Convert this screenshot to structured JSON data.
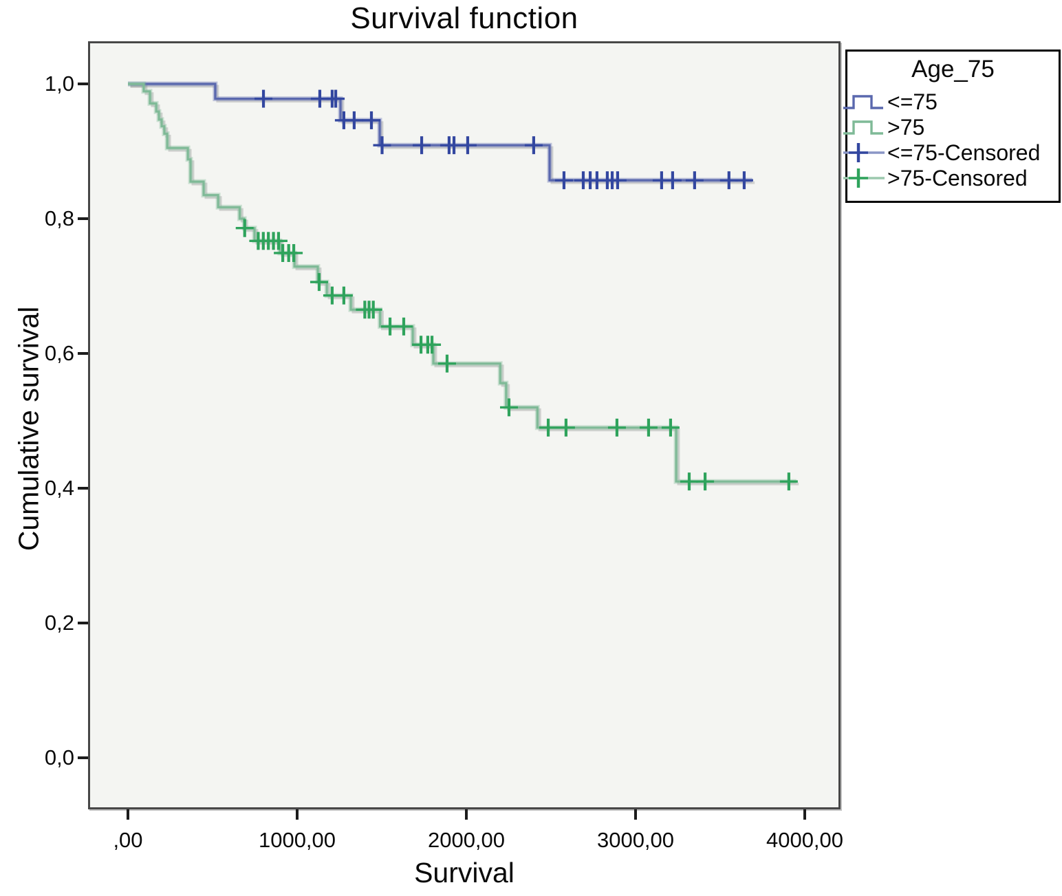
{
  "title": "Survival function",
  "x_axis": {
    "label": "Survival",
    "ticks": [
      {
        "value": 0,
        "label": ",00"
      },
      {
        "value": 1000,
        "label": "1000,00"
      },
      {
        "value": 2000,
        "label": "2000,00"
      },
      {
        "value": 3000,
        "label": "3000,00"
      },
      {
        "value": 4000,
        "label": "4000,00"
      }
    ]
  },
  "y_axis": {
    "label": "Cumulative survival",
    "ticks": [
      {
        "value": 1.0,
        "label": "1,0"
      },
      {
        "value": 0.8,
        "label": "0,8"
      },
      {
        "value": 0.6,
        "label": "0,6"
      },
      {
        "value": 0.4,
        "label": "0,4"
      },
      {
        "value": 0.2,
        "label": "0,2"
      },
      {
        "value": 0.0,
        "label": "0,0"
      }
    ]
  },
  "legend": {
    "title": "Age_75",
    "entries": [
      {
        "label": "<=75",
        "type": "step",
        "color": "#5a68ae"
      },
      {
        "label": ">75",
        "type": "step",
        "color": "#7fba97"
      },
      {
        "label": "<=75-Censored",
        "type": "censor",
        "color": "#3347a0",
        "line_color": "#8a96c6"
      },
      {
        "label": ">75-Censored",
        "type": "censor",
        "color": "#2fa35c",
        "line_color": "#9cc9ae"
      }
    ]
  },
  "chart_data": {
    "type": "line",
    "subtype": "kaplan-meier-step",
    "title": "Survival function",
    "xlabel": "Survival",
    "ylabel": "Cumulative survival",
    "xlim": [
      -236,
      4211
    ],
    "ylim": [
      -0.02,
      1.06
    ],
    "grid": false,
    "legend_position": "top-right-outside",
    "series": [
      {
        "name": "<=75",
        "line_color": "#5a68ae",
        "censor_color": "#3347a0",
        "steps": [
          [
            0,
            1.0
          ],
          [
            516,
            0.978
          ],
          [
            1256,
            0.946
          ],
          [
            1488,
            0.909
          ],
          [
            2492,
            0.857
          ]
        ],
        "end_x": 3690,
        "censors": [
          [
            801,
            0.978
          ],
          [
            1134,
            0.978
          ],
          [
            1207,
            0.978
          ],
          [
            1228,
            0.978
          ],
          [
            1276,
            0.946
          ],
          [
            1337,
            0.946
          ],
          [
            1439,
            0.946
          ],
          [
            1502,
            0.909
          ],
          [
            1736,
            0.909
          ],
          [
            1898,
            0.909
          ],
          [
            1927,
            0.909
          ],
          [
            2008,
            0.909
          ],
          [
            2398,
            0.909
          ],
          [
            2577,
            0.857
          ],
          [
            2691,
            0.857
          ],
          [
            2732,
            0.857
          ],
          [
            2772,
            0.857
          ],
          [
            2833,
            0.857
          ],
          [
            2862,
            0.857
          ],
          [
            2894,
            0.857
          ],
          [
            3154,
            0.857
          ],
          [
            3219,
            0.857
          ],
          [
            3349,
            0.857
          ],
          [
            3552,
            0.857
          ],
          [
            3642,
            0.857
          ]
        ]
      },
      {
        "name": ">75",
        "line_color": "#7fba97",
        "censor_color": "#2fa35c",
        "steps": [
          [
            0,
            1.0
          ],
          [
            93,
            0.989
          ],
          [
            130,
            0.971
          ],
          [
            167,
            0.959
          ],
          [
            183,
            0.947
          ],
          [
            199,
            0.937
          ],
          [
            215,
            0.926
          ],
          [
            232,
            0.905
          ],
          [
            354,
            0.888
          ],
          [
            370,
            0.855
          ],
          [
            447,
            0.835
          ],
          [
            533,
            0.817
          ],
          [
            660,
            0.8
          ],
          [
            688,
            0.786
          ],
          [
            748,
            0.767
          ],
          [
            898,
            0.749
          ],
          [
            984,
            0.729
          ],
          [
            1122,
            0.706
          ],
          [
            1175,
            0.686
          ],
          [
            1317,
            0.665
          ],
          [
            1490,
            0.64
          ],
          [
            1683,
            0.613
          ],
          [
            1805,
            0.585
          ],
          [
            2200,
            0.556
          ],
          [
            2235,
            0.52
          ],
          [
            2420,
            0.49
          ],
          [
            3240,
            0.41
          ]
        ],
        "end_x": 3950,
        "censors": [
          [
            690,
            0.786
          ],
          [
            770,
            0.767
          ],
          [
            800,
            0.767
          ],
          [
            830,
            0.767
          ],
          [
            860,
            0.767
          ],
          [
            890,
            0.767
          ],
          [
            915,
            0.749
          ],
          [
            950,
            0.749
          ],
          [
            980,
            0.749
          ],
          [
            1130,
            0.706
          ],
          [
            1207,
            0.686
          ],
          [
            1276,
            0.686
          ],
          [
            1400,
            0.665
          ],
          [
            1425,
            0.665
          ],
          [
            1450,
            0.665
          ],
          [
            1549,
            0.64
          ],
          [
            1630,
            0.64
          ],
          [
            1732,
            0.613
          ],
          [
            1772,
            0.613
          ],
          [
            1797,
            0.613
          ],
          [
            1886,
            0.585
          ],
          [
            2252,
            0.52
          ],
          [
            2484,
            0.49
          ],
          [
            2589,
            0.49
          ],
          [
            2890,
            0.49
          ],
          [
            3077,
            0.49
          ],
          [
            3207,
            0.49
          ],
          [
            3317,
            0.41
          ],
          [
            3411,
            0.41
          ],
          [
            3906,
            0.41
          ]
        ]
      }
    ]
  },
  "colors": {
    "plot_background": "#f4f5f2",
    "frame": "#474747",
    "shadow": "rgba(130,130,130,0.3)",
    "text": "#0a0a0a"
  }
}
